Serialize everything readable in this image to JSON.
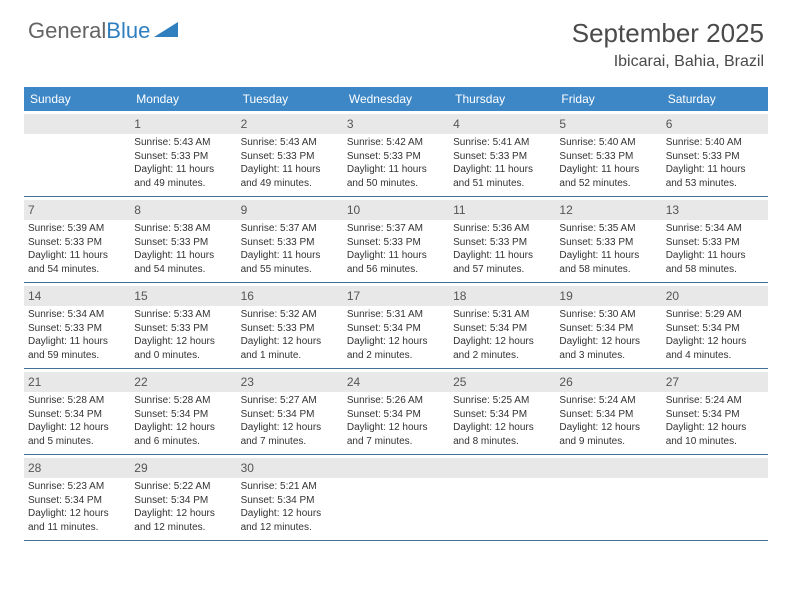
{
  "logo": {
    "word1": "General",
    "word2": "Blue"
  },
  "title": "September 2025",
  "location": "Ibicarai, Bahia, Brazil",
  "weekday_header_bg": "#3d87c7",
  "weekday_header_color": "#ffffff",
  "daynum_bg": "#e8e8e8",
  "cell_border_color": "#436f94",
  "weekdays": [
    "Sunday",
    "Monday",
    "Tuesday",
    "Wednesday",
    "Thursday",
    "Friday",
    "Saturday"
  ],
  "weeks": [
    [
      {
        "n": "",
        "lines": []
      },
      {
        "n": "1",
        "lines": [
          "Sunrise: 5:43 AM",
          "Sunset: 5:33 PM",
          "Daylight: 11 hours and 49 minutes."
        ]
      },
      {
        "n": "2",
        "lines": [
          "Sunrise: 5:43 AM",
          "Sunset: 5:33 PM",
          "Daylight: 11 hours and 49 minutes."
        ]
      },
      {
        "n": "3",
        "lines": [
          "Sunrise: 5:42 AM",
          "Sunset: 5:33 PM",
          "Daylight: 11 hours and 50 minutes."
        ]
      },
      {
        "n": "4",
        "lines": [
          "Sunrise: 5:41 AM",
          "Sunset: 5:33 PM",
          "Daylight: 11 hours and 51 minutes."
        ]
      },
      {
        "n": "5",
        "lines": [
          "Sunrise: 5:40 AM",
          "Sunset: 5:33 PM",
          "Daylight: 11 hours and 52 minutes."
        ]
      },
      {
        "n": "6",
        "lines": [
          "Sunrise: 5:40 AM",
          "Sunset: 5:33 PM",
          "Daylight: 11 hours and 53 minutes."
        ]
      }
    ],
    [
      {
        "n": "7",
        "lines": [
          "Sunrise: 5:39 AM",
          "Sunset: 5:33 PM",
          "Daylight: 11 hours and 54 minutes."
        ]
      },
      {
        "n": "8",
        "lines": [
          "Sunrise: 5:38 AM",
          "Sunset: 5:33 PM",
          "Daylight: 11 hours and 54 minutes."
        ]
      },
      {
        "n": "9",
        "lines": [
          "Sunrise: 5:37 AM",
          "Sunset: 5:33 PM",
          "Daylight: 11 hours and 55 minutes."
        ]
      },
      {
        "n": "10",
        "lines": [
          "Sunrise: 5:37 AM",
          "Sunset: 5:33 PM",
          "Daylight: 11 hours and 56 minutes."
        ]
      },
      {
        "n": "11",
        "lines": [
          "Sunrise: 5:36 AM",
          "Sunset: 5:33 PM",
          "Daylight: 11 hours and 57 minutes."
        ]
      },
      {
        "n": "12",
        "lines": [
          "Sunrise: 5:35 AM",
          "Sunset: 5:33 PM",
          "Daylight: 11 hours and 58 minutes."
        ]
      },
      {
        "n": "13",
        "lines": [
          "Sunrise: 5:34 AM",
          "Sunset: 5:33 PM",
          "Daylight: 11 hours and 58 minutes."
        ]
      }
    ],
    [
      {
        "n": "14",
        "lines": [
          "Sunrise: 5:34 AM",
          "Sunset: 5:33 PM",
          "Daylight: 11 hours and 59 minutes."
        ]
      },
      {
        "n": "15",
        "lines": [
          "Sunrise: 5:33 AM",
          "Sunset: 5:33 PM",
          "Daylight: 12 hours and 0 minutes."
        ]
      },
      {
        "n": "16",
        "lines": [
          "Sunrise: 5:32 AM",
          "Sunset: 5:33 PM",
          "Daylight: 12 hours and 1 minute."
        ]
      },
      {
        "n": "17",
        "lines": [
          "Sunrise: 5:31 AM",
          "Sunset: 5:34 PM",
          "Daylight: 12 hours and 2 minutes."
        ]
      },
      {
        "n": "18",
        "lines": [
          "Sunrise: 5:31 AM",
          "Sunset: 5:34 PM",
          "Daylight: 12 hours and 2 minutes."
        ]
      },
      {
        "n": "19",
        "lines": [
          "Sunrise: 5:30 AM",
          "Sunset: 5:34 PM",
          "Daylight: 12 hours and 3 minutes."
        ]
      },
      {
        "n": "20",
        "lines": [
          "Sunrise: 5:29 AM",
          "Sunset: 5:34 PM",
          "Daylight: 12 hours and 4 minutes."
        ]
      }
    ],
    [
      {
        "n": "21",
        "lines": [
          "Sunrise: 5:28 AM",
          "Sunset: 5:34 PM",
          "Daylight: 12 hours and 5 minutes."
        ]
      },
      {
        "n": "22",
        "lines": [
          "Sunrise: 5:28 AM",
          "Sunset: 5:34 PM",
          "Daylight: 12 hours and 6 minutes."
        ]
      },
      {
        "n": "23",
        "lines": [
          "Sunrise: 5:27 AM",
          "Sunset: 5:34 PM",
          "Daylight: 12 hours and 7 minutes."
        ]
      },
      {
        "n": "24",
        "lines": [
          "Sunrise: 5:26 AM",
          "Sunset: 5:34 PM",
          "Daylight: 12 hours and 7 minutes."
        ]
      },
      {
        "n": "25",
        "lines": [
          "Sunrise: 5:25 AM",
          "Sunset: 5:34 PM",
          "Daylight: 12 hours and 8 minutes."
        ]
      },
      {
        "n": "26",
        "lines": [
          "Sunrise: 5:24 AM",
          "Sunset: 5:34 PM",
          "Daylight: 12 hours and 9 minutes."
        ]
      },
      {
        "n": "27",
        "lines": [
          "Sunrise: 5:24 AM",
          "Sunset: 5:34 PM",
          "Daylight: 12 hours and 10 minutes."
        ]
      }
    ],
    [
      {
        "n": "28",
        "lines": [
          "Sunrise: 5:23 AM",
          "Sunset: 5:34 PM",
          "Daylight: 12 hours and 11 minutes."
        ]
      },
      {
        "n": "29",
        "lines": [
          "Sunrise: 5:22 AM",
          "Sunset: 5:34 PM",
          "Daylight: 12 hours and 12 minutes."
        ]
      },
      {
        "n": "30",
        "lines": [
          "Sunrise: 5:21 AM",
          "Sunset: 5:34 PM",
          "Daylight: 12 hours and 12 minutes."
        ]
      },
      {
        "n": "",
        "lines": []
      },
      {
        "n": "",
        "lines": []
      },
      {
        "n": "",
        "lines": []
      },
      {
        "n": "",
        "lines": []
      }
    ]
  ]
}
